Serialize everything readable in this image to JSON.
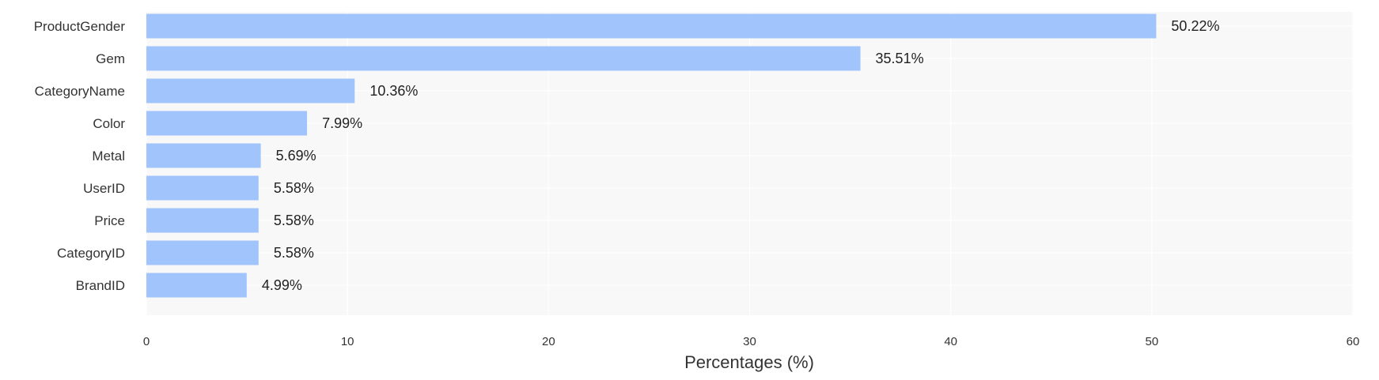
{
  "chart_data": {
    "type": "bar",
    "orientation": "horizontal",
    "categories": [
      "ProductGender",
      "Gem",
      "CategoryName",
      "Color",
      "Metal",
      "UserID",
      "Price",
      "CategoryID",
      "BrandID"
    ],
    "values": [
      50.22,
      35.51,
      10.36,
      7.99,
      5.69,
      5.58,
      5.58,
      5.58,
      4.99
    ],
    "data_labels": [
      "50.22%",
      "35.51%",
      "10.36%",
      "7.99%",
      "5.69%",
      "5.58%",
      "5.58%",
      "5.58%",
      "4.99%"
    ],
    "xlabel": "Percentages (%)",
    "ylabel": "",
    "xlim": [
      0,
      60
    ],
    "xticks": [
      0,
      10,
      20,
      30,
      40,
      50,
      60
    ],
    "grid": true,
    "legend": "none",
    "colors": {
      "bar": "#a1c4fd",
      "plot_background": "#f8f8f8",
      "grid": "#ffffff"
    }
  }
}
